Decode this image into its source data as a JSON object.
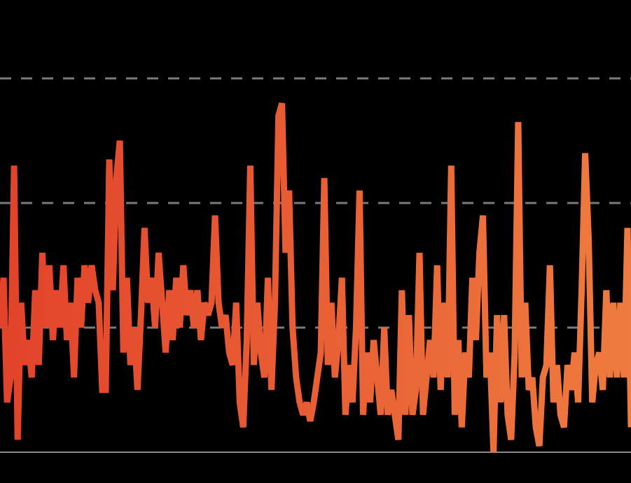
{
  "chart_data": {
    "type": "line",
    "values": [
      1.0,
      1.4,
      0.4,
      0.6,
      2.3,
      0.1,
      1.2,
      0.7,
      0.9,
      0.6,
      1.3,
      0.7,
      1.6,
      1.0,
      1.5,
      0.9,
      1.3,
      1.0,
      1.5,
      0.9,
      1.2,
      0.6,
      1.4,
      1.0,
      1.5,
      1.2,
      1.5,
      1.3,
      1.2,
      0.5,
      0.5,
      2.35,
      1.3,
      2.2,
      2.5,
      0.8,
      1.4,
      0.7,
      1.0,
      0.5,
      1.1,
      1.8,
      1.2,
      1.4,
      1.0,
      1.6,
      1.2,
      0.8,
      1.3,
      0.9,
      1.4,
      1.0,
      1.5,
      1.1,
      1.3,
      1.0,
      1.3,
      0.9,
      1.2,
      1.1,
      1.2,
      1.9,
      1.2,
      1.0,
      1.1,
      0.8,
      0.7,
      1.2,
      0.4,
      0.2,
      0.9,
      2.3,
      0.7,
      1.2,
      0.8,
      0.6,
      1.4,
      0.5,
      1.2,
      2.7,
      2.8,
      1.6,
      2.1,
      1.0,
      0.6,
      0.4,
      0.3,
      0.4,
      0.25,
      0.4,
      0.6,
      0.8,
      2.2,
      0.7,
      1.2,
      0.6,
      0.9,
      1.4,
      0.3,
      0.7,
      0.4,
      1.0,
      2.1,
      0.3,
      0.8,
      0.4,
      0.9,
      0.6,
      0.3,
      1.0,
      0.3,
      0.5,
      0.3,
      0.1,
      1.3,
      0.3,
      1.1,
      0.3,
      0.5,
      1.6,
      0.3,
      0.6,
      0.9,
      0.6,
      1.5,
      0.5,
      1.2,
      0.6,
      2.3,
      0.3,
      0.9,
      0.2,
      0.8,
      0.6,
      1.4,
      0.9,
      1.6,
      1.9,
      0.6,
      0.8,
      0.0,
      1.1,
      0.4,
      1.1,
      0.3,
      0.1,
      0.8,
      2.65,
      0.6,
      1.2,
      0.5,
      0.6,
      0.2,
      0.05,
      0.6,
      0.7,
      1.5,
      0.4,
      0.7,
      0.3,
      0.2,
      0.7,
      0.5,
      0.8,
      0.4,
      1.3,
      2.4,
      1.7,
      0.4,
      0.7,
      0.8,
      0.5,
      1.3,
      0.6,
      1.2,
      0.6,
      1.2,
      0.6,
      1.8,
      0.2
    ],
    "gradient": [
      "#e2432a",
      "#ef7b3f"
    ],
    "ylim": [
      -0.247,
      3.629
    ],
    "yticks": [
      0,
      1,
      2,
      3
    ],
    "grid": true
  }
}
